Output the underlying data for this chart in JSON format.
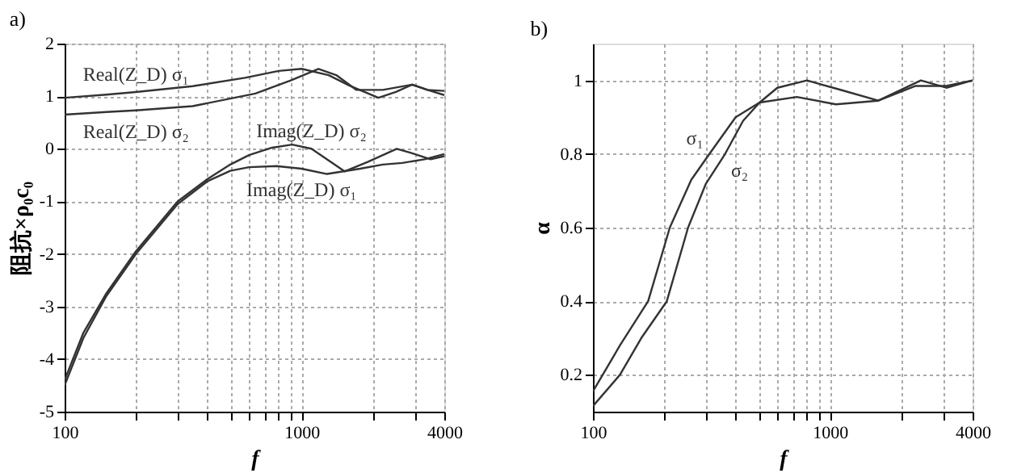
{
  "chart_data": [
    {
      "type": "line",
      "title": "a)",
      "xlabel": "f",
      "ylabel": "阻抗×ρ₀c₀",
      "log": "x",
      "grid": true,
      "legend": false,
      "line_style": "solid",
      "marker": "none",
      "xlim": [
        100,
        4000
      ],
      "xticks": [
        100,
        {
          "value": 200,
          "label": null
        },
        {
          "value": 300,
          "label": null
        },
        {
          "value": 400,
          "label": null
        },
        {
          "value": 500,
          "label": null
        },
        {
          "value": 600,
          "label": null
        },
        {
          "value": 700,
          "label": null
        },
        {
          "value": 800,
          "label": null
        },
        {
          "value": 900,
          "label": null
        },
        1000,
        {
          "value": 2000,
          "label": null
        },
        {
          "value": 3000,
          "label": null
        },
        4000
      ],
      "ylim": [
        -5,
        2
      ],
      "yticks": [
        -5,
        -4,
        -3,
        -2,
        -1,
        0,
        1,
        2
      ],
      "series": [
        {
          "name": "Real(Z_D) σ₁",
          "color": "#333333",
          "x": [
            100,
            150,
            200,
            347,
            577,
            800,
            1000,
            1300,
            1594,
            2109,
            2500,
            2930,
            3400,
            4000
          ],
          "values": [
            0.97,
            1.03,
            1.08,
            1.19,
            1.35,
            1.48,
            1.52,
            1.4,
            1.2,
            0.97,
            1.08,
            1.22,
            1.12,
            1.02
          ]
        },
        {
          "name": "Real(Z_D) σ₂",
          "color": "#333333",
          "x": [
            100,
            150,
            200,
            347,
            638,
            900,
            1178,
            1400,
            1700,
            2200,
            2930,
            3400,
            4000
          ],
          "values": [
            0.65,
            0.7,
            0.73,
            0.81,
            1.05,
            1.3,
            1.52,
            1.4,
            1.12,
            1.12,
            1.22,
            1.12,
            1.1
          ]
        },
        {
          "name": "Imag(Z_D) σ₁",
          "color": "#333333",
          "x": [
            100,
            120,
            150,
            200,
            300,
            400,
            500,
            600,
            783,
            1000,
            1280,
            1765,
            2200,
            2660,
            3300,
            4000
          ],
          "values": [
            -4.5,
            -3.6,
            -2.8,
            -2.0,
            -1.05,
            -0.62,
            -0.42,
            -0.35,
            -0.33,
            -0.38,
            -0.48,
            -0.38,
            -0.3,
            -0.27,
            -0.2,
            -0.1
          ]
        },
        {
          "name": "Imag(Z_D) σ₂",
          "color": "#333333",
          "x": [
            100,
            120,
            150,
            200,
            300,
            400,
            500,
            600,
            750,
            912,
            1100,
            1518,
            1900,
            2520,
            3000,
            3500,
            4000
          ],
          "values": [
            -4.4,
            -3.5,
            -2.75,
            -1.95,
            -1.0,
            -0.58,
            -0.3,
            -0.12,
            0.02,
            0.08,
            0.0,
            -0.43,
            -0.25,
            0.0,
            -0.1,
            -0.2,
            -0.14
          ]
        }
      ]
    },
    {
      "type": "line",
      "title": "b)",
      "xlabel": "f",
      "ylabel": "α",
      "log": "x",
      "grid": true,
      "legend": false,
      "line_style": "solid",
      "marker": "none",
      "xlim": [
        100,
        4000
      ],
      "xticks": [
        100,
        {
          "value": 200,
          "label": null
        },
        {
          "value": 300,
          "label": null
        },
        {
          "value": 400,
          "label": null
        },
        {
          "value": 500,
          "label": null
        },
        {
          "value": 600,
          "label": null
        },
        {
          "value": 700,
          "label": null
        },
        {
          "value": 800,
          "label": null
        },
        {
          "value": 900,
          "label": null
        },
        1000,
        {
          "value": 2000,
          "label": null
        },
        {
          "value": 3000,
          "label": null
        },
        4000
      ],
      "ylim": [
        0.1,
        1.1
      ],
      "yticks": [
        0.2,
        0.4,
        0.6,
        0.8,
        1
      ],
      "series": [
        {
          "name": "σ₁",
          "color": "#333333",
          "x": [
            100,
            130,
            171,
            211,
            260,
            310,
            400,
            505,
            725,
            1060,
            1600,
            2300,
            3100,
            4000
          ],
          "values": [
            0.155,
            0.28,
            0.4,
            0.6,
            0.73,
            0.8,
            0.9,
            0.94,
            0.955,
            0.935,
            0.945,
            0.985,
            0.985,
            1.0
          ]
        },
        {
          "name": "σ₂",
          "color": "#333333",
          "x": [
            100,
            130,
            160,
            205,
            252,
            300,
            361,
            430,
            505,
            600,
            800,
            1100,
            1600,
            2420,
            3100,
            4000
          ],
          "values": [
            0.115,
            0.2,
            0.3,
            0.4,
            0.6,
            0.72,
            0.8,
            0.89,
            0.94,
            0.98,
            1.0,
            0.975,
            0.945,
            1.0,
            0.98,
            1.0
          ]
        }
      ]
    }
  ]
}
